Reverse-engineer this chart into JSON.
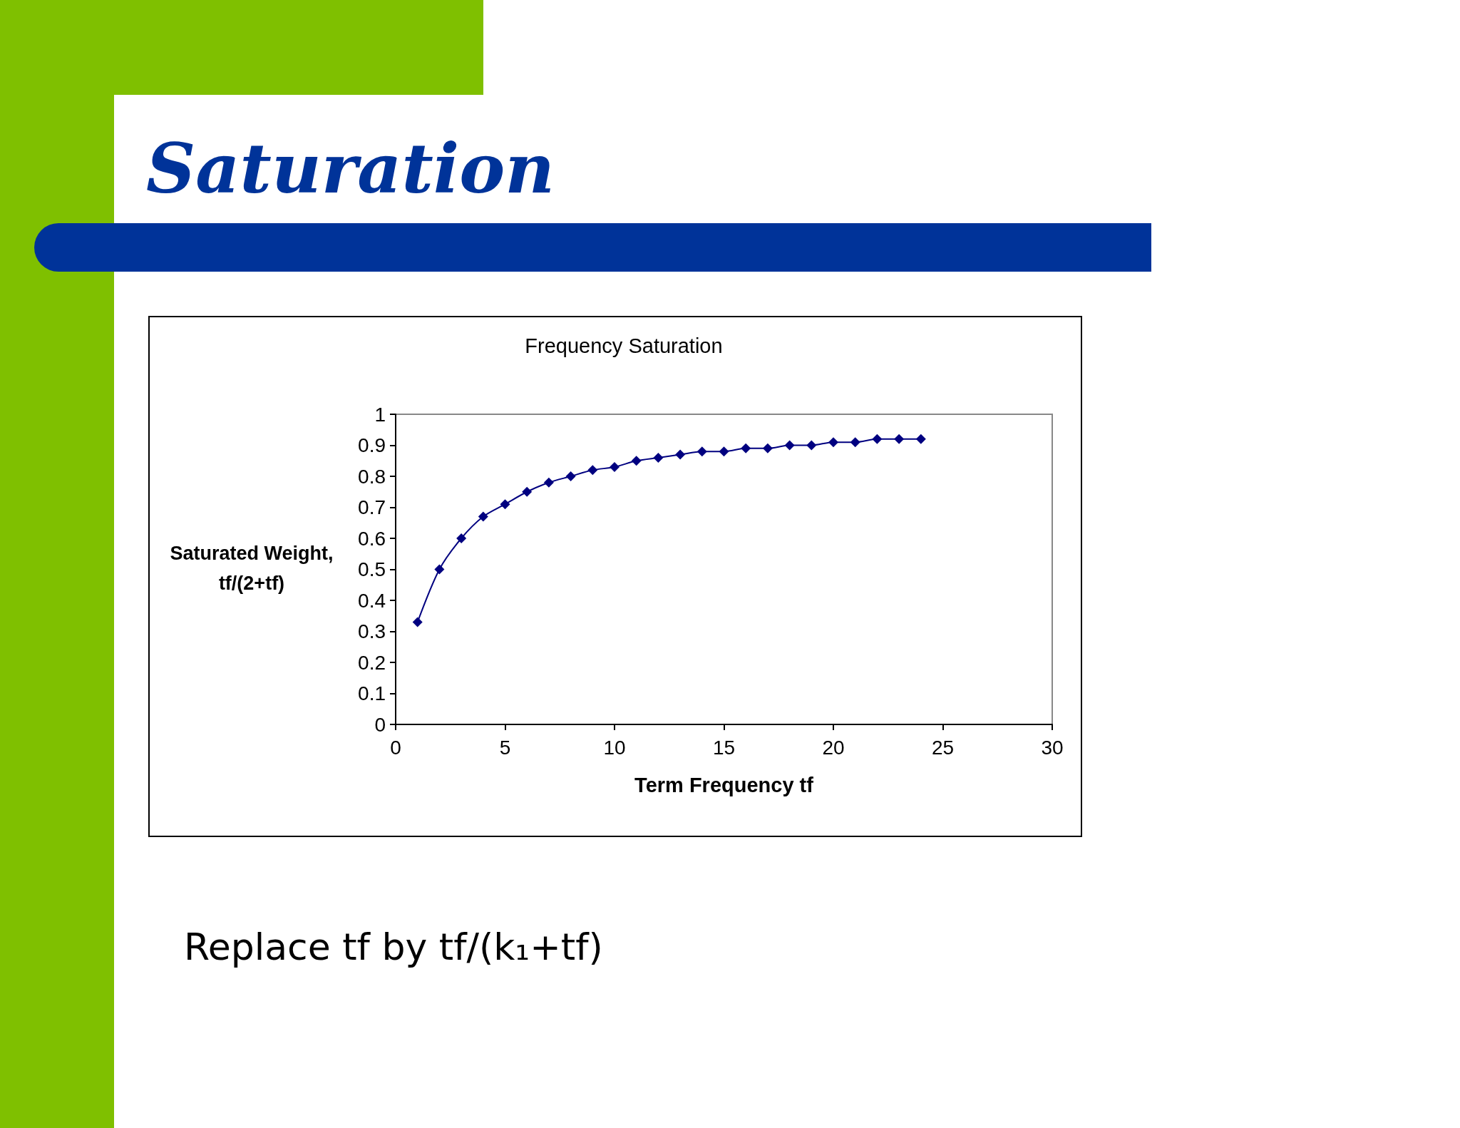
{
  "chart_data": {
    "type": "line",
    "title": "Frequency Saturation",
    "subtitle": "Saturation",
    "annotations": [
      "Replace tf by tf/(k₁+tf)"
    ],
    "xlabel": "Term Frequency tf",
    "ylabel": "Saturated Weight, tf/(2+tf)",
    "x": [
      1,
      2,
      3,
      4,
      5,
      6,
      7,
      8,
      9,
      10,
      11,
      12,
      13,
      14,
      15,
      16,
      17,
      18,
      19,
      20,
      21,
      22,
      23,
      24
    ],
    "series": [
      {
        "color": "#000080",
        "values": [
          0.33,
          0.5,
          0.6,
          0.67,
          0.71,
          0.75,
          0.78,
          0.8,
          0.82,
          0.83,
          0.85,
          0.86,
          0.87,
          0.88,
          0.88,
          0.89,
          0.89,
          0.9,
          0.9,
          0.91,
          0.91,
          0.92,
          0.92,
          0.92
        ]
      }
    ],
    "xlim": [
      0,
      30
    ],
    "xticks": [
      0,
      5,
      10,
      15,
      20,
      25,
      30
    ],
    "ylim": [
      0,
      1
    ],
    "yticks": [
      0,
      0.1,
      0.2,
      0.3,
      0.4,
      0.5,
      0.6,
      0.7,
      0.8,
      0.9,
      1
    ],
    "grid": false,
    "marker": "diamond",
    "line_style": "solid"
  }
}
